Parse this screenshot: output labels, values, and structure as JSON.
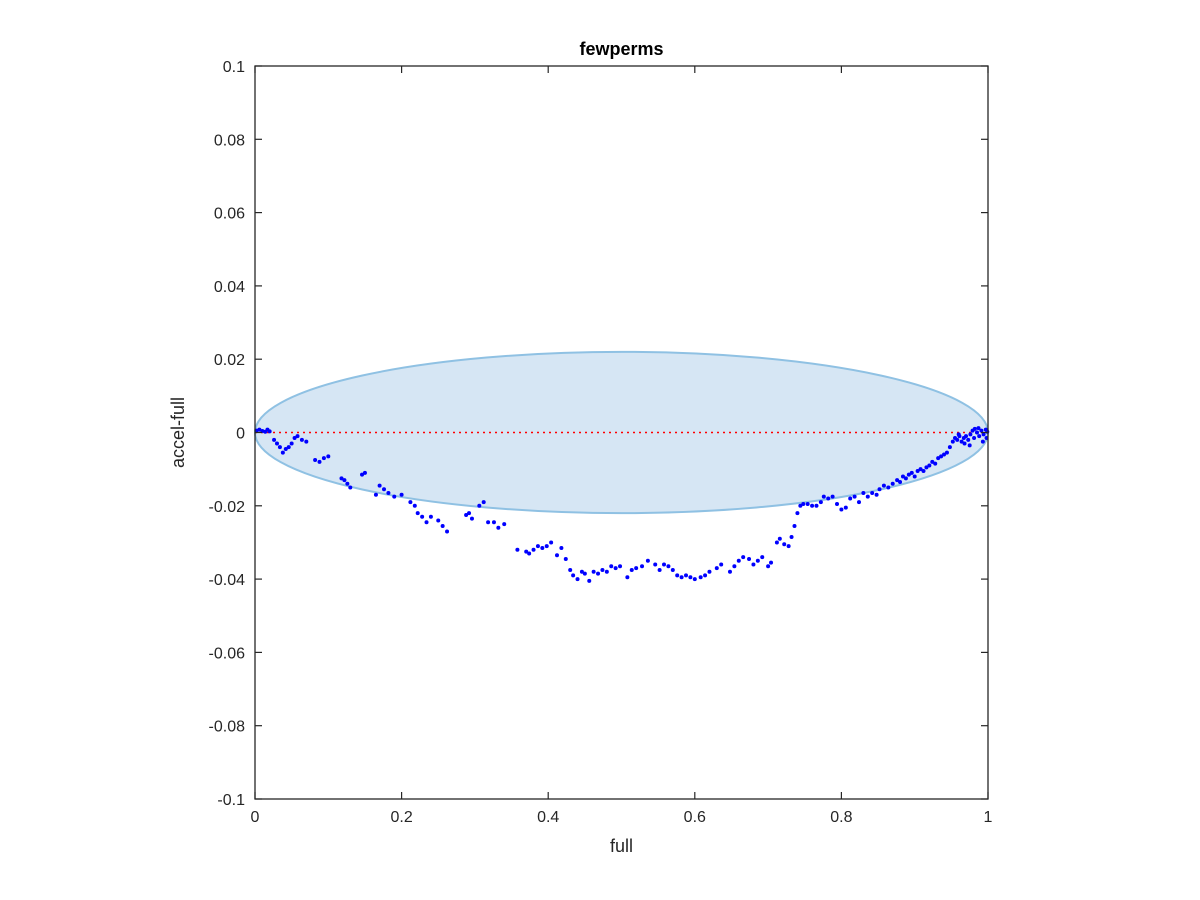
{
  "chart_data": {
    "type": "scatter",
    "title": "fewperms",
    "xlabel": "full",
    "ylabel": "accel-full",
    "xlim": [
      0,
      1
    ],
    "ylim": [
      -0.1,
      0.1
    ],
    "xticks": [
      0,
      0.2,
      0.4,
      0.6,
      0.8,
      1
    ],
    "xtick_labels": [
      "0",
      "0.2",
      "0.4",
      "0.6",
      "0.8",
      "1"
    ],
    "yticks": [
      -0.1,
      -0.08,
      -0.06,
      -0.04,
      -0.02,
      0,
      0.02,
      0.04,
      0.06,
      0.08,
      0.1
    ],
    "ytick_labels": [
      "-0.1",
      "-0.08",
      "-0.06",
      "-0.04",
      "-0.02",
      "0",
      "0.02",
      "0.04",
      "0.06",
      "0.08",
      "0.1"
    ],
    "grid": false,
    "reference_line": {
      "y": 0,
      "color": "#ff0000",
      "style": "dotted"
    },
    "region": {
      "shape": "ellipse",
      "cx": 0.5,
      "cy": 0,
      "rx": 0.5,
      "ry": 0.022,
      "fill": "#d6e6f4",
      "stroke": "#8fc1e3"
    },
    "series": [
      {
        "color": "#0000ff",
        "points": [
          [
            0.002,
            0.0005
          ],
          [
            0.006,
            0.0008
          ],
          [
            0.01,
            0.0004
          ],
          [
            0.014,
            0.0002
          ],
          [
            0.017,
            0.0008
          ],
          [
            0.02,
            0.0003
          ],
          [
            0.026,
            -0.002
          ],
          [
            0.03,
            -0.003
          ],
          [
            0.034,
            -0.004
          ],
          [
            0.038,
            -0.0055
          ],
          [
            0.042,
            -0.0045
          ],
          [
            0.046,
            -0.004
          ],
          [
            0.05,
            -0.003
          ],
          [
            0.054,
            -0.0015
          ],
          [
            0.058,
            -0.001
          ],
          [
            0.064,
            -0.002
          ],
          [
            0.07,
            -0.0025
          ],
          [
            0.082,
            -0.0075
          ],
          [
            0.088,
            -0.008
          ],
          [
            0.094,
            -0.007
          ],
          [
            0.1,
            -0.0065
          ],
          [
            0.118,
            -0.0125
          ],
          [
            0.122,
            -0.013
          ],
          [
            0.126,
            -0.014
          ],
          [
            0.13,
            -0.015
          ],
          [
            0.15,
            -0.011
          ],
          [
            0.146,
            -0.0115
          ],
          [
            0.165,
            -0.017
          ],
          [
            0.17,
            -0.0145
          ],
          [
            0.176,
            -0.0155
          ],
          [
            0.182,
            -0.0165
          ],
          [
            0.19,
            -0.0175
          ],
          [
            0.2,
            -0.017
          ],
          [
            0.212,
            -0.019
          ],
          [
            0.218,
            -0.02
          ],
          [
            0.222,
            -0.022
          ],
          [
            0.228,
            -0.023
          ],
          [
            0.234,
            -0.0245
          ],
          [
            0.24,
            -0.023
          ],
          [
            0.25,
            -0.024
          ],
          [
            0.256,
            -0.0255
          ],
          [
            0.262,
            -0.027
          ],
          [
            0.288,
            -0.0225
          ],
          [
            0.292,
            -0.022
          ],
          [
            0.296,
            -0.0235
          ],
          [
            0.306,
            -0.02
          ],
          [
            0.312,
            -0.019
          ],
          [
            0.318,
            -0.0245
          ],
          [
            0.326,
            -0.0245
          ],
          [
            0.332,
            -0.026
          ],
          [
            0.34,
            -0.025
          ],
          [
            0.358,
            -0.032
          ],
          [
            0.37,
            -0.0325
          ],
          [
            0.374,
            -0.033
          ],
          [
            0.38,
            -0.032
          ],
          [
            0.386,
            -0.031
          ],
          [
            0.392,
            -0.0315
          ],
          [
            0.398,
            -0.031
          ],
          [
            0.404,
            -0.03
          ],
          [
            0.412,
            -0.0335
          ],
          [
            0.418,
            -0.0315
          ],
          [
            0.424,
            -0.0345
          ],
          [
            0.43,
            -0.0375
          ],
          [
            0.434,
            -0.039
          ],
          [
            0.44,
            -0.04
          ],
          [
            0.446,
            -0.038
          ],
          [
            0.45,
            -0.0385
          ],
          [
            0.456,
            -0.0405
          ],
          [
            0.462,
            -0.038
          ],
          [
            0.468,
            -0.0385
          ],
          [
            0.474,
            -0.0375
          ],
          [
            0.48,
            -0.038
          ],
          [
            0.486,
            -0.0365
          ],
          [
            0.492,
            -0.037
          ],
          [
            0.498,
            -0.0365
          ],
          [
            0.508,
            -0.0395
          ],
          [
            0.514,
            -0.0375
          ],
          [
            0.52,
            -0.037
          ],
          [
            0.528,
            -0.0365
          ],
          [
            0.536,
            -0.035
          ],
          [
            0.546,
            -0.036
          ],
          [
            0.552,
            -0.0375
          ],
          [
            0.558,
            -0.036
          ],
          [
            0.564,
            -0.0365
          ],
          [
            0.57,
            -0.0375
          ],
          [
            0.576,
            -0.039
          ],
          [
            0.582,
            -0.0395
          ],
          [
            0.588,
            -0.039
          ],
          [
            0.594,
            -0.0395
          ],
          [
            0.6,
            -0.04
          ],
          [
            0.608,
            -0.0395
          ],
          [
            0.614,
            -0.039
          ],
          [
            0.62,
            -0.038
          ],
          [
            0.63,
            -0.037
          ],
          [
            0.636,
            -0.036
          ],
          [
            0.648,
            -0.038
          ],
          [
            0.654,
            -0.0365
          ],
          [
            0.66,
            -0.035
          ],
          [
            0.666,
            -0.034
          ],
          [
            0.674,
            -0.0345
          ],
          [
            0.68,
            -0.036
          ],
          [
            0.686,
            -0.035
          ],
          [
            0.692,
            -0.034
          ],
          [
            0.7,
            -0.0365
          ],
          [
            0.704,
            -0.0355
          ],
          [
            0.712,
            -0.03
          ],
          [
            0.716,
            -0.029
          ],
          [
            0.722,
            -0.0305
          ],
          [
            0.728,
            -0.031
          ],
          [
            0.732,
            -0.0285
          ],
          [
            0.736,
            -0.0255
          ],
          [
            0.74,
            -0.022
          ],
          [
            0.744,
            -0.02
          ],
          [
            0.748,
            -0.0195
          ],
          [
            0.754,
            -0.0195
          ],
          [
            0.76,
            -0.02
          ],
          [
            0.766,
            -0.02
          ],
          [
            0.772,
            -0.019
          ],
          [
            0.776,
            -0.0175
          ],
          [
            0.782,
            -0.018
          ],
          [
            0.788,
            -0.0175
          ],
          [
            0.794,
            -0.0195
          ],
          [
            0.8,
            -0.021
          ],
          [
            0.806,
            -0.0205
          ],
          [
            0.812,
            -0.018
          ],
          [
            0.818,
            -0.0175
          ],
          [
            0.824,
            -0.019
          ],
          [
            0.83,
            -0.0165
          ],
          [
            0.836,
            -0.0175
          ],
          [
            0.842,
            -0.0165
          ],
          [
            0.848,
            -0.017
          ],
          [
            0.852,
            -0.0155
          ],
          [
            0.858,
            -0.0145
          ],
          [
            0.864,
            -0.015
          ],
          [
            0.87,
            -0.014
          ],
          [
            0.876,
            -0.013
          ],
          [
            0.88,
            -0.0135
          ],
          [
            0.884,
            -0.012
          ],
          [
            0.888,
            -0.0125
          ],
          [
            0.892,
            -0.0115
          ],
          [
            0.896,
            -0.011
          ],
          [
            0.9,
            -0.012
          ],
          [
            0.904,
            -0.0105
          ],
          [
            0.908,
            -0.01
          ],
          [
            0.912,
            -0.0105
          ],
          [
            0.916,
            -0.0095
          ],
          [
            0.92,
            -0.009
          ],
          [
            0.924,
            -0.008
          ],
          [
            0.928,
            -0.0085
          ],
          [
            0.932,
            -0.007
          ],
          [
            0.936,
            -0.0065
          ],
          [
            0.94,
            -0.006
          ],
          [
            0.944,
            -0.0055
          ],
          [
            0.948,
            -0.004
          ],
          [
            0.952,
            -0.0025
          ],
          [
            0.955,
            -0.0015
          ],
          [
            0.958,
            -0.002
          ],
          [
            0.961,
            -0.001
          ],
          [
            0.964,
            -0.0025
          ],
          [
            0.967,
            -0.0015
          ],
          [
            0.97,
            -0.001
          ],
          [
            0.973,
            -0.002
          ],
          [
            0.976,
            -0.0005
          ],
          [
            0.979,
            0.0005
          ],
          [
            0.982,
            0.001
          ],
          [
            0.985,
            0.0
          ],
          [
            0.988,
            -0.001
          ],
          [
            0.991,
            0.0005
          ],
          [
            0.994,
            -0.0005
          ],
          [
            0.997,
            0.0008
          ],
          [
            0.999,
            0.0002
          ],
          [
            0.96,
            -0.0005
          ],
          [
            0.968,
            -0.003
          ],
          [
            0.975,
            -0.0035
          ],
          [
            0.981,
            -0.0015
          ],
          [
            0.987,
            0.0012
          ],
          [
            0.993,
            -0.0025
          ],
          [
            0.998,
            -0.0015
          ]
        ]
      }
    ]
  }
}
